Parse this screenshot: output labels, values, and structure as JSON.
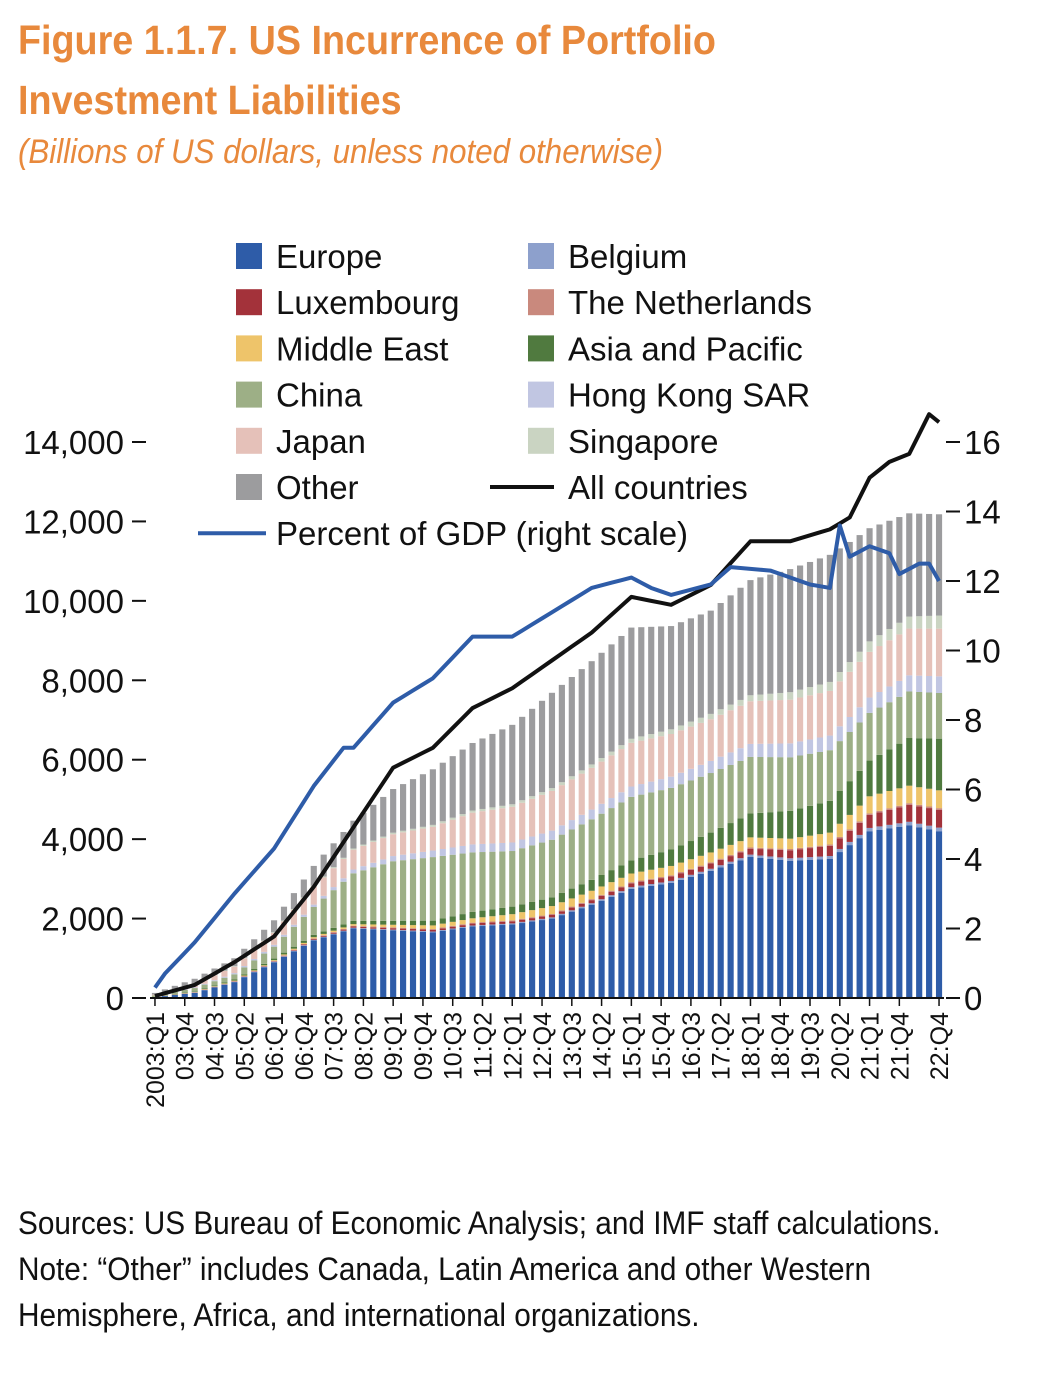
{
  "figure": {
    "title_line1": "Figure 1.1.7. US Incurrence of Portfolio",
    "title_line2": "Investment Liabilities",
    "subtitle": "(Billions of US dollars, unless noted otherwise)",
    "sources": "Sources: US Bureau of Economic Analysis; and IMF staff calculations.",
    "note": "Note: “Other” includes Canada, Latin America and other Western Hemisphere, Africa, and international organizations."
  },
  "chart_data": {
    "type": "bar",
    "stacked": true,
    "left_axis": {
      "ylim": [
        0,
        14000
      ],
      "ticks": [
        "0",
        "2,000",
        "4,000",
        "6,000",
        "8,000",
        "10,000",
        "12,000",
        "14,000"
      ],
      "tick_values": [
        0,
        2000,
        4000,
        6000,
        8000,
        10000,
        12000,
        14000
      ]
    },
    "right_axis": {
      "ylim": [
        0,
        16
      ],
      "ticks": [
        "0",
        "2",
        "4",
        "6",
        "8",
        "10",
        "12",
        "14",
        "16"
      ],
      "tick_values": [
        0,
        2,
        4,
        6,
        8,
        10,
        12,
        14,
        16
      ]
    },
    "x_tick_labels": [
      "2003:Q1",
      "03:Q4",
      "04:Q3",
      "05:Q2",
      "06:Q1",
      "06:Q4",
      "07:Q3",
      "08:Q2",
      "09:Q1",
      "09:Q4",
      "10:Q3",
      "11:Q2",
      "12:Q1",
      "12:Q4",
      "13:Q3",
      "14:Q2",
      "15:Q1",
      "15:Q4",
      "16:Q3",
      "17:Q2",
      "18:Q1",
      "18:Q4",
      "19:Q3",
      "20:Q2",
      "21:Q1",
      "21:Q4",
      "22:Q4"
    ],
    "legend_position": "top-left",
    "legend": [
      {
        "name": "Europe",
        "color": "#2E5CA8",
        "kind": "bar"
      },
      {
        "name": "Belgium",
        "color": "#8DA0CC",
        "kind": "bar"
      },
      {
        "name": "Luxembourg",
        "color": "#A3323A",
        "kind": "bar"
      },
      {
        "name": "The Netherlands",
        "color": "#C9897D",
        "kind": "bar"
      },
      {
        "name": "Middle East",
        "color": "#EEC46A",
        "kind": "bar"
      },
      {
        "name": "Asia and Pacific",
        "color": "#507A3F",
        "kind": "bar"
      },
      {
        "name": "China",
        "color": "#9DAF86",
        "kind": "bar"
      },
      {
        "name": "Hong Kong SAR",
        "color": "#C1C6E2",
        "kind": "bar"
      },
      {
        "name": "Japan",
        "color": "#E5C1B9",
        "kind": "bar"
      },
      {
        "name": "Singapore",
        "color": "#CAD4C2",
        "kind": "bar"
      },
      {
        "name": "Other",
        "color": "#9C9C9E",
        "kind": "bar"
      },
      {
        "name": "All countries",
        "color": "#111111",
        "kind": "line"
      },
      {
        "name": "Percent of GDP (right scale)",
        "color": "#2E5CA8",
        "kind": "line"
      }
    ],
    "series_order": [
      "Europe",
      "Belgium",
      "Luxembourg",
      "The Netherlands",
      "Middle East",
      "Asia and Pacific",
      "China",
      "Hong Kong SAR",
      "Japan",
      "Singapore",
      "Other"
    ],
    "quarters": [
      "2003:Q1",
      "2003:Q2",
      "2003:Q3",
      "2003:Q4",
      "2004:Q1",
      "2004:Q2",
      "2004:Q3",
      "2004:Q4",
      "2005:Q1",
      "2005:Q2",
      "2005:Q3",
      "2005:Q4",
      "2006:Q1",
      "2006:Q2",
      "2006:Q3",
      "2006:Q4",
      "2007:Q1",
      "2007:Q2",
      "2007:Q3",
      "2007:Q4",
      "2008:Q1",
      "2008:Q2",
      "2008:Q3",
      "2008:Q4",
      "2009:Q1",
      "2009:Q2",
      "2009:Q3",
      "2009:Q4",
      "2010:Q1",
      "2010:Q2",
      "2010:Q3",
      "2010:Q4",
      "2011:Q1",
      "2011:Q2",
      "2011:Q3",
      "2011:Q4",
      "2012:Q1",
      "2012:Q2",
      "2012:Q3",
      "2012:Q4",
      "2013:Q1",
      "2013:Q2",
      "2013:Q3",
      "2013:Q4",
      "2014:Q1",
      "2014:Q2",
      "2014:Q3",
      "2014:Q4",
      "2015:Q1",
      "2015:Q2",
      "2015:Q3",
      "2015:Q4",
      "2016:Q1",
      "2016:Q2",
      "2016:Q3",
      "2016:Q4",
      "2017:Q1",
      "2017:Q2",
      "2017:Q3",
      "2017:Q4",
      "2018:Q1",
      "2018:Q2",
      "2018:Q3",
      "2018:Q4",
      "2019:Q1",
      "2019:Q2",
      "2019:Q3",
      "2019:Q4",
      "2020:Q1",
      "2020:Q2",
      "2020:Q3",
      "2020:Q4",
      "2021:Q1",
      "2021:Q2",
      "2021:Q3",
      "2021:Q4",
      "2022:Q1",
      "2022:Q2",
      "2022:Q3",
      "2022:Q4"
    ],
    "all_countries_keypoints": [
      [
        0,
        50
      ],
      [
        4,
        330
      ],
      [
        8,
        900
      ],
      [
        12,
        1550
      ],
      [
        16,
        2800
      ],
      [
        20,
        4300
      ],
      [
        24,
        5800
      ],
      [
        28,
        6300
      ],
      [
        32,
        7300
      ],
      [
        36,
        7800
      ],
      [
        40,
        8500
      ],
      [
        44,
        9200
      ],
      [
        48,
        10100
      ],
      [
        52,
        9900
      ],
      [
        56,
        10400
      ],
      [
        60,
        11500
      ],
      [
        64,
        11500
      ],
      [
        68,
        11800
      ],
      [
        70,
        12100
      ],
      [
        72,
        13100
      ],
      [
        74,
        13500
      ],
      [
        76,
        13700
      ],
      [
        78,
        14700
      ],
      [
        79,
        14500
      ]
    ],
    "percent_gdp_keypoints": [
      [
        0,
        0.3
      ],
      [
        1,
        0.7
      ],
      [
        4,
        1.6
      ],
      [
        8,
        3.0
      ],
      [
        12,
        4.3
      ],
      [
        16,
        6.1
      ],
      [
        19,
        7.2
      ],
      [
        20,
        7.2
      ],
      [
        24,
        8.5
      ],
      [
        28,
        9.2
      ],
      [
        32,
        10.4
      ],
      [
        36,
        10.4
      ],
      [
        40,
        11.1
      ],
      [
        44,
        11.8
      ],
      [
        48,
        12.1
      ],
      [
        50,
        11.8
      ],
      [
        52,
        11.6
      ],
      [
        56,
        11.9
      ],
      [
        58,
        12.4
      ],
      [
        62,
        12.3
      ],
      [
        66,
        11.9
      ],
      [
        68,
        11.8
      ],
      [
        69,
        13.6
      ],
      [
        70,
        12.7
      ],
      [
        72,
        13.0
      ],
      [
        74,
        12.8
      ],
      [
        75,
        12.2
      ],
      [
        77,
        12.5
      ],
      [
        78,
        12.5
      ],
      [
        79,
        12.0
      ]
    ],
    "component_keypoints": {
      "Europe": [
        [
          0,
          20
        ],
        [
          4,
          130
        ],
        [
          8,
          400
        ],
        [
          12,
          900
        ],
        [
          16,
          1450
        ],
        [
          20,
          1750
        ],
        [
          24,
          1700
        ],
        [
          28,
          1650
        ],
        [
          32,
          1800
        ],
        [
          36,
          1850
        ],
        [
          40,
          2000
        ],
        [
          44,
          2350
        ],
        [
          48,
          2750
        ],
        [
          52,
          2900
        ],
        [
          56,
          3200
        ],
        [
          60,
          3550
        ],
        [
          64,
          3450
        ],
        [
          68,
          3500
        ],
        [
          70,
          3850
        ],
        [
          72,
          4200
        ],
        [
          76,
          4350
        ],
        [
          79,
          4200
        ]
      ],
      "Belgium": [
        [
          0,
          2
        ],
        [
          20,
          20
        ],
        [
          40,
          30
        ],
        [
          60,
          60
        ],
        [
          70,
          80
        ],
        [
          79,
          90
        ]
      ],
      "Luxembourg": [
        [
          0,
          2
        ],
        [
          12,
          10
        ],
        [
          20,
          30
        ],
        [
          40,
          60
        ],
        [
          60,
          150
        ],
        [
          70,
          280
        ],
        [
          76,
          430
        ],
        [
          79,
          450
        ]
      ],
      "The Netherlands": [
        [
          0,
          2
        ],
        [
          12,
          10
        ],
        [
          20,
          20
        ],
        [
          40,
          25
        ],
        [
          60,
          30
        ],
        [
          79,
          40
        ]
      ],
      "Middle East": [
        [
          0,
          3
        ],
        [
          12,
          20
        ],
        [
          20,
          40
        ],
        [
          28,
          90
        ],
        [
          32,
          110
        ],
        [
          40,
          200
        ],
        [
          48,
          220
        ],
        [
          56,
          250
        ],
        [
          64,
          260
        ],
        [
          68,
          300
        ],
        [
          72,
          430
        ],
        [
          79,
          450
        ]
      ],
      "Asia and Pacific": [
        [
          0,
          5
        ],
        [
          12,
          40
        ],
        [
          20,
          80
        ],
        [
          28,
          120
        ],
        [
          32,
          160
        ],
        [
          40,
          220
        ],
        [
          48,
          330
        ],
        [
          56,
          500
        ],
        [
          64,
          700
        ],
        [
          72,
          900
        ],
        [
          76,
          1200
        ],
        [
          79,
          1300
        ]
      ],
      "China": [
        [
          0,
          30
        ],
        [
          8,
          130
        ],
        [
          12,
          300
        ],
        [
          16,
          700
        ],
        [
          20,
          1200
        ],
        [
          24,
          1500
        ],
        [
          28,
          1600
        ],
        [
          32,
          1500
        ],
        [
          36,
          1400
        ],
        [
          40,
          1450
        ],
        [
          48,
          1600
        ],
        [
          56,
          1500
        ],
        [
          64,
          1350
        ],
        [
          72,
          1200
        ],
        [
          79,
          1150
        ]
      ],
      "Hong Kong SAR": [
        [
          0,
          2
        ],
        [
          16,
          60
        ],
        [
          32,
          200
        ],
        [
          48,
          260
        ],
        [
          64,
          350
        ],
        [
          79,
          420
        ]
      ],
      "Japan": [
        [
          0,
          20
        ],
        [
          8,
          160
        ],
        [
          12,
          300
        ],
        [
          16,
          450
        ],
        [
          20,
          500
        ],
        [
          28,
          600
        ],
        [
          32,
          800
        ],
        [
          40,
          1000
        ],
        [
          48,
          1100
        ],
        [
          56,
          1050
        ],
        [
          64,
          1100
        ],
        [
          72,
          1150
        ],
        [
          79,
          1200
        ]
      ],
      "Singapore": [
        [
          0,
          2
        ],
        [
          20,
          30
        ],
        [
          40,
          70
        ],
        [
          60,
          150
        ],
        [
          79,
          330
        ]
      ],
      "Other": [
        [
          0,
          40
        ],
        [
          8,
          200
        ],
        [
          12,
          300
        ],
        [
          16,
          500
        ],
        [
          20,
          700
        ],
        [
          24,
          1100
        ],
        [
          28,
          1400
        ],
        [
          32,
          1700
        ],
        [
          36,
          2000
        ],
        [
          40,
          2400
        ],
        [
          44,
          2600
        ],
        [
          48,
          2800
        ],
        [
          52,
          2600
        ],
        [
          56,
          2600
        ],
        [
          60,
          2900
        ],
        [
          64,
          3100
        ],
        [
          68,
          3200
        ],
        [
          72,
          2850
        ],
        [
          76,
          2600
        ],
        [
          79,
          2550
        ]
      ]
    }
  }
}
